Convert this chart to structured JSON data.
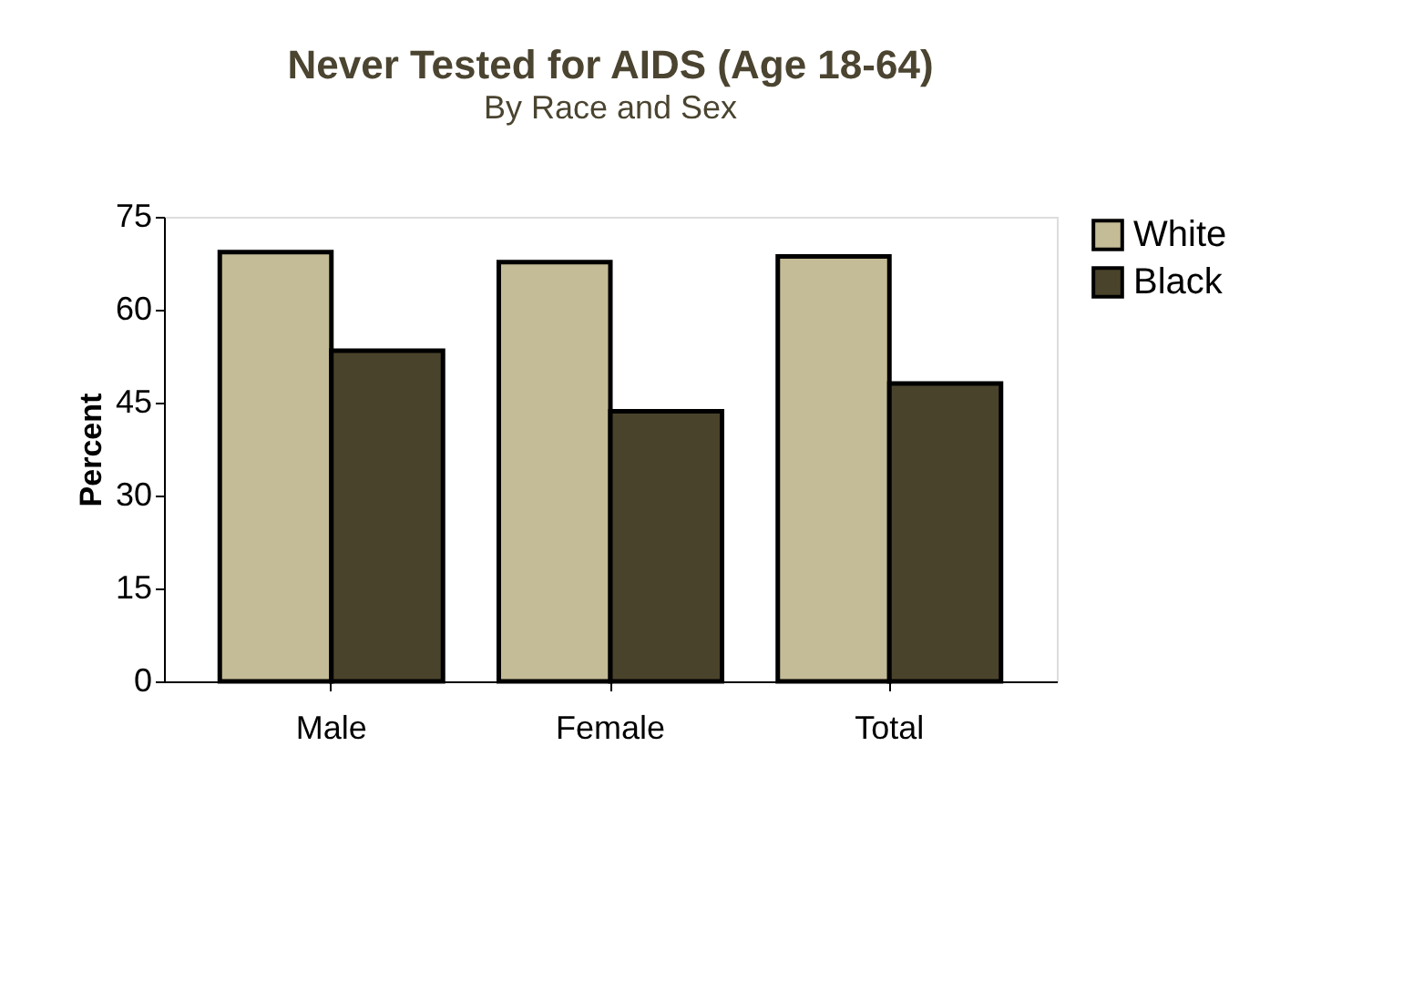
{
  "chart_data": {
    "type": "bar",
    "title": "Never Tested for AIDS (Age 18-64)",
    "subtitle": "By Race and Sex",
    "ylabel": "Percent",
    "categories": [
      "Male",
      "Female",
      "Total"
    ],
    "series": [
      {
        "name": "White",
        "color": "#c4bc96",
        "values": [
          69.3,
          67.7,
          68.6
        ]
      },
      {
        "name": "Black",
        "color": "#4a432b",
        "values": [
          53.4,
          43.6,
          48.1
        ]
      }
    ],
    "ylim": [
      0,
      75
    ],
    "yticks": [
      0,
      15,
      30,
      45,
      60,
      75
    ],
    "grid": false,
    "legend": "right"
  }
}
